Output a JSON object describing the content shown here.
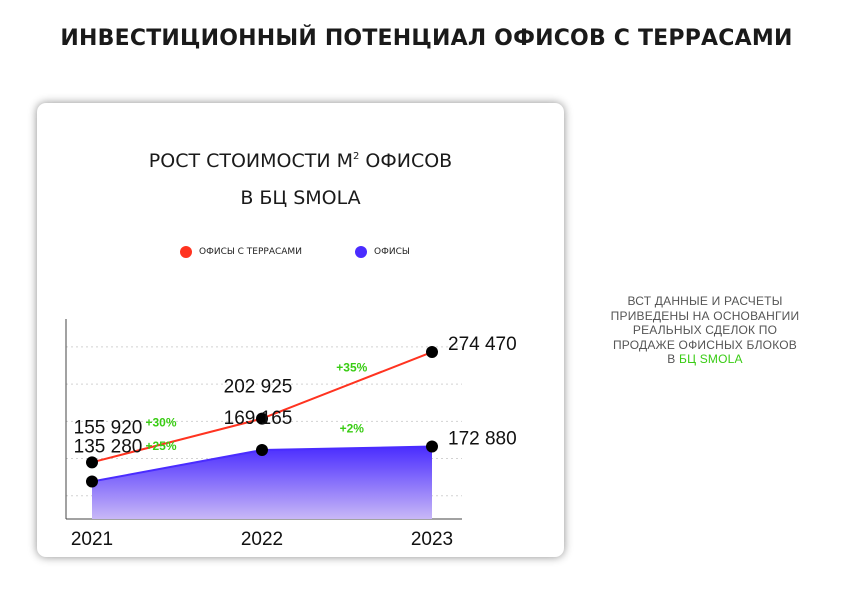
{
  "page": {
    "title": "ИНВЕСТИЦИОННЫЙ ПОТЕНЦИАЛ ОФИСОВ С ТЕРРАСАМИ"
  },
  "note": {
    "lines": [
      "ВСТ ДАННЫЕ И РАСЧЕТЫ",
      "ПРИВЕДЕНЫ НА ОСНОВАНГИИ",
      "РЕАЛЬНЫХ СДЕЛОК ПО",
      "ПРОДАЖЕ ОФИСНЫХ БЛОКОВ"
    ],
    "prefix": "В ",
    "highlight": "БЦ SMOLA"
  },
  "colors": {
    "terrace": "#ff3320",
    "office": "#4a2cff",
    "office_fill_top": "#4a2cff",
    "office_fill_bottom": "#c8b8f7",
    "growth": "#39cc14",
    "point": "#000000"
  },
  "chart_data": {
    "type": "line",
    "title_line1_main": "РОСТ СТОИМОСТИ М",
    "title_line1_sup": "2",
    "title_line1_end": " ОФИСОВ",
    "title_line2": "В БЦ SMOLA",
    "legend_placement": "top",
    "grid": true,
    "x": [
      "2021",
      "2022",
      "2023"
    ],
    "ylim": [
      95000,
      310000
    ],
    "series": [
      {
        "name": "ОФИСЫ С ТЕРРАСАМИ",
        "style": "line",
        "values": [
          155920,
          202925,
          274470
        ],
        "value_labels": [
          "155 920",
          "202 925",
          "274 470"
        ],
        "growth_labels": [
          "+30%",
          "+35%"
        ]
      },
      {
        "name": "ОФИСЫ",
        "style": "area",
        "values": [
          135280,
          169165,
          172880
        ],
        "value_labels": [
          "135 280",
          "169 165",
          "172 880"
        ],
        "growth_labels": [
          "+25%",
          "+2%"
        ]
      }
    ]
  }
}
